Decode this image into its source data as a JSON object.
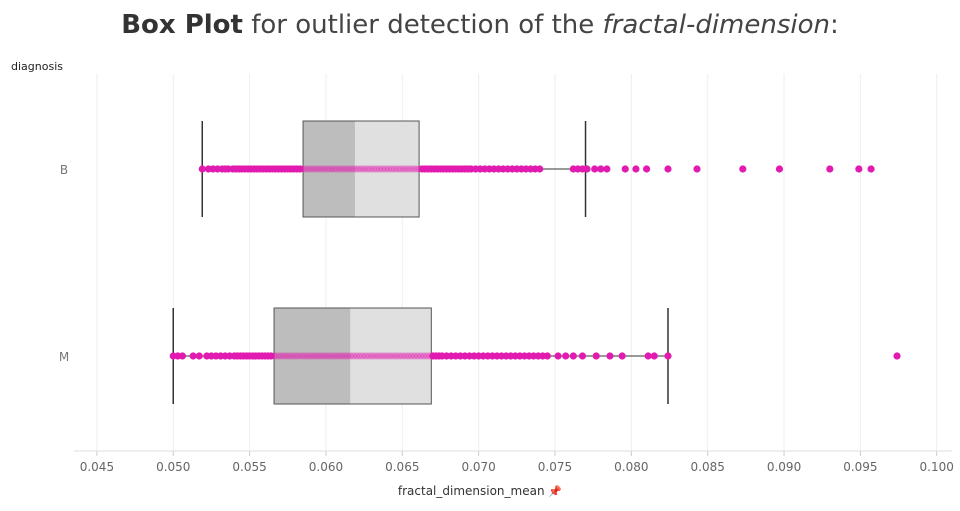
{
  "title": {
    "bold": "Box Plot",
    "plain": " for outlier detection of the ",
    "italic": "fractal-dimension",
    "end": ":"
  },
  "row_header": "diagnosis",
  "pin_icon": "pin-icon",
  "colors": {
    "point": "#e21bb0",
    "box_lower": "#bdbdbd",
    "box_upper": "#e0e0e0",
    "whisker": "#333333",
    "grid": "#eeeeee"
  },
  "chart_data": {
    "type": "box",
    "xlabel": "fractal_dimension_mean",
    "ylabel": "diagnosis",
    "xlim": [
      0.0435,
      0.101
    ],
    "xticks": [
      0.045,
      0.05,
      0.055,
      0.06,
      0.065,
      0.07,
      0.075,
      0.08,
      0.085,
      0.09,
      0.095,
      0.1
    ],
    "xtick_labels": [
      "0.045",
      "0.050",
      "0.055",
      "0.060",
      "0.065",
      "0.070",
      "0.075",
      "0.080",
      "0.085",
      "0.090",
      "0.095",
      "0.100"
    ],
    "categories": [
      "B",
      "M"
    ],
    "boxes": [
      {
        "category": "B",
        "whisker_low": 0.0519,
        "q1": 0.0585,
        "median": 0.0619,
        "q3": 0.0661,
        "whisker_high": 0.077,
        "points": [
          0.0519,
          0.0523,
          0.0526,
          0.0529,
          0.0532,
          0.0534,
          0.0536,
          0.0539,
          0.0541,
          0.0543,
          0.0545,
          0.0547,
          0.0549,
          0.0551,
          0.0553,
          0.0555,
          0.0557,
          0.0559,
          0.0561,
          0.0563,
          0.0565,
          0.0567,
          0.0569,
          0.0571,
          0.0573,
          0.0575,
          0.0577,
          0.0579,
          0.0581,
          0.0583,
          0.0585,
          0.0587,
          0.0589,
          0.0591,
          0.0593,
          0.0595,
          0.0597,
          0.0599,
          0.0601,
          0.0603,
          0.0605,
          0.0607,
          0.0609,
          0.0611,
          0.0613,
          0.0615,
          0.0617,
          0.0619,
          0.0621,
          0.0623,
          0.0625,
          0.0627,
          0.0629,
          0.0631,
          0.0633,
          0.0635,
          0.0637,
          0.0639,
          0.0641,
          0.0643,
          0.0645,
          0.0647,
          0.0649,
          0.0651,
          0.0653,
          0.0655,
          0.0657,
          0.0659,
          0.0661,
          0.0663,
          0.0665,
          0.0667,
          0.0669,
          0.0671,
          0.0673,
          0.0675,
          0.0677,
          0.0679,
          0.0681,
          0.0683,
          0.0685,
          0.0687,
          0.0689,
          0.0691,
          0.0693,
          0.0695,
          0.0698,
          0.0701,
          0.0704,
          0.0707,
          0.071,
          0.0713,
          0.0716,
          0.0719,
          0.0722,
          0.0725,
          0.0728,
          0.0731,
          0.0734,
          0.0737,
          0.074,
          0.0762,
          0.0765,
          0.0768,
          0.0771,
          0.0776,
          0.078,
          0.0784,
          0.0796,
          0.0803,
          0.081,
          0.0824,
          0.0843,
          0.0873,
          0.0897,
          0.093,
          0.0949,
          0.0957
        ]
      },
      {
        "category": "M",
        "whisker_low": 0.05,
        "q1": 0.0566,
        "median": 0.0616,
        "q3": 0.0669,
        "whisker_high": 0.0824,
        "points": [
          0.05,
          0.0503,
          0.0506,
          0.0513,
          0.0517,
          0.0522,
          0.0525,
          0.0528,
          0.0531,
          0.0534,
          0.0537,
          0.054,
          0.0542,
          0.0544,
          0.0546,
          0.0548,
          0.055,
          0.0552,
          0.0554,
          0.0556,
          0.0558,
          0.056,
          0.0562,
          0.0564,
          0.0566,
          0.0568,
          0.057,
          0.0572,
          0.0574,
          0.0576,
          0.0578,
          0.058,
          0.0582,
          0.0584,
          0.0586,
          0.0588,
          0.059,
          0.0592,
          0.0594,
          0.0596,
          0.0598,
          0.06,
          0.0602,
          0.0604,
          0.0606,
          0.0608,
          0.061,
          0.0612,
          0.0614,
          0.0616,
          0.0618,
          0.062,
          0.0622,
          0.0624,
          0.0626,
          0.0628,
          0.063,
          0.0632,
          0.0634,
          0.0636,
          0.0638,
          0.064,
          0.0642,
          0.0644,
          0.0646,
          0.0648,
          0.065,
          0.0652,
          0.0654,
          0.0656,
          0.0658,
          0.066,
          0.0662,
          0.0664,
          0.0666,
          0.0668,
          0.067,
          0.0672,
          0.0674,
          0.0676,
          0.0679,
          0.0682,
          0.0685,
          0.0688,
          0.0691,
          0.0694,
          0.0697,
          0.07,
          0.0703,
          0.0706,
          0.0709,
          0.0712,
          0.0715,
          0.0718,
          0.0721,
          0.0724,
          0.0727,
          0.073,
          0.0733,
          0.0736,
          0.0739,
          0.0742,
          0.0745,
          0.0752,
          0.0757,
          0.0762,
          0.0768,
          0.0777,
          0.0786,
          0.0794,
          0.0811,
          0.0815,
          0.0824,
          0.0974
        ]
      }
    ]
  }
}
